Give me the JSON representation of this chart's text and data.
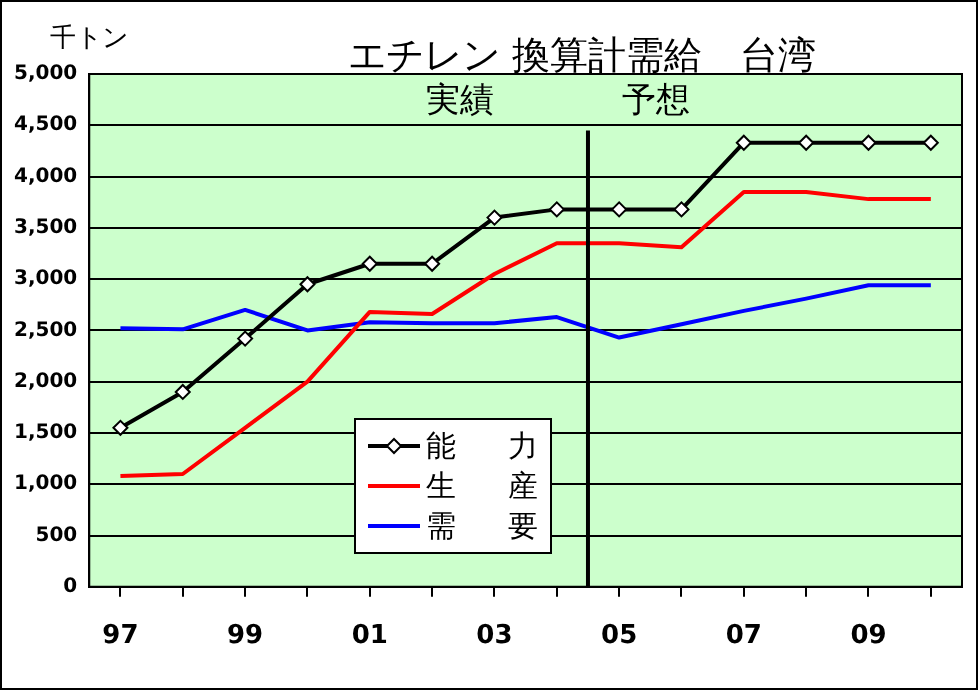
{
  "chart_data": {
    "type": "line",
    "title": "エチレン 換算計需給　台湾",
    "ylabel": "千トン",
    "x": [
      1997,
      1998,
      1999,
      2000,
      2001,
      2002,
      2003,
      2004,
      2005,
      2006,
      2007,
      2008,
      2009,
      2010
    ],
    "xlim": [
      1996.5,
      2010.5
    ],
    "xticks": [
      {
        "value": 1997,
        "label": "97"
      },
      {
        "value": 1998,
        "label": null
      },
      {
        "value": 1999,
        "label": "99"
      },
      {
        "value": 2000,
        "label": null
      },
      {
        "value": 2001,
        "label": "01"
      },
      {
        "value": 2002,
        "label": null
      },
      {
        "value": 2003,
        "label": "03"
      },
      {
        "value": 2004,
        "label": null
      },
      {
        "value": 2005,
        "label": "05"
      },
      {
        "value": 2006,
        "label": null
      },
      {
        "value": 2007,
        "label": "07"
      },
      {
        "value": 2008,
        "label": null
      },
      {
        "value": 2009,
        "label": "09"
      },
      {
        "value": 2010,
        "label": null
      }
    ],
    "ylim": [
      0,
      5000
    ],
    "yticks": [
      0,
      500,
      {
        "value": 1000,
        "label": "1,000"
      },
      {
        "value": 1500,
        "label": "1,500"
      },
      {
        "value": 2000,
        "label": "2,000"
      },
      {
        "value": 2500,
        "label": "2,500"
      },
      {
        "value": 3000,
        "label": "3,000"
      },
      {
        "value": 3500,
        "label": "3,500"
      },
      {
        "value": 4000,
        "label": "4,000"
      },
      {
        "value": 4500,
        "label": "4,500"
      },
      {
        "value": 5000,
        "label": "5,000"
      }
    ],
    "series": [
      {
        "name": "能力",
        "color": "#000000",
        "marker": "diamond",
        "values": [
          1550,
          1900,
          2420,
          2950,
          3150,
          3150,
          3600,
          3680,
          3680,
          3680,
          4330,
          4330,
          4330,
          4330
        ]
      },
      {
        "name": "生産",
        "color": "#ff0000",
        "marker": "none",
        "values": [
          1080,
          1100,
          1550,
          2000,
          2680,
          2660,
          3050,
          3350,
          3350,
          3310,
          3850,
          3850,
          3780,
          3780
        ]
      },
      {
        "name": "需要",
        "color": "#0000ff",
        "marker": "none",
        "values": [
          2520,
          2510,
          2700,
          2500,
          2580,
          2570,
          2570,
          2630,
          2430,
          2560,
          2690,
          2810,
          2940,
          2940
        ]
      }
    ],
    "ref_lines": [
      {
        "axis": "x",
        "value": 2004.5,
        "color": "#000000"
      }
    ],
    "annotations": [
      "実績",
      "予想"
    ],
    "grid": "y",
    "legend": "bottom"
  }
}
